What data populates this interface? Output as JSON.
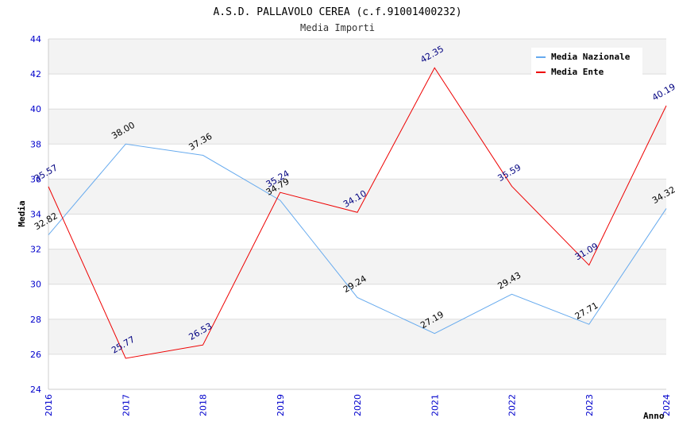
{
  "chart_data": {
    "type": "line",
    "title": "A.S.D. PALLAVOLO CEREA (c.f.91001400232)",
    "subtitle": "Media Importi",
    "xlabel": "Anno",
    "ylabel": "Media",
    "ylim": [
      24,
      44
    ],
    "yticks": [
      24,
      26,
      28,
      30,
      32,
      34,
      36,
      38,
      40,
      42,
      44
    ],
    "categories": [
      "2016",
      "2017",
      "2018",
      "2019",
      "2020",
      "2021",
      "2022",
      "2023",
      "2024"
    ],
    "series": [
      {
        "name": "Media Nazionale",
        "color": "#66aaee",
        "label_color": "#000000",
        "values": [
          32.82,
          38.0,
          37.36,
          34.79,
          29.24,
          27.19,
          29.43,
          27.71,
          34.32
        ],
        "labels": [
          "32.82",
          "38.00",
          "37.36",
          "34.79",
          "29.24",
          "27.19",
          "29.43",
          "27.71",
          "34.32"
        ]
      },
      {
        "name": "Media Ente",
        "color": "#ee0000",
        "label_color": "#000080",
        "values": [
          35.57,
          25.77,
          26.53,
          35.24,
          34.1,
          42.35,
          35.59,
          31.09,
          40.19
        ],
        "labels": [
          "35.57",
          "25.77",
          "26.53",
          "35.24",
          "34.10",
          "42.35",
          "35.59",
          "31.09",
          "40.19"
        ]
      }
    ],
    "legend_position": "top-right",
    "grid": true
  }
}
